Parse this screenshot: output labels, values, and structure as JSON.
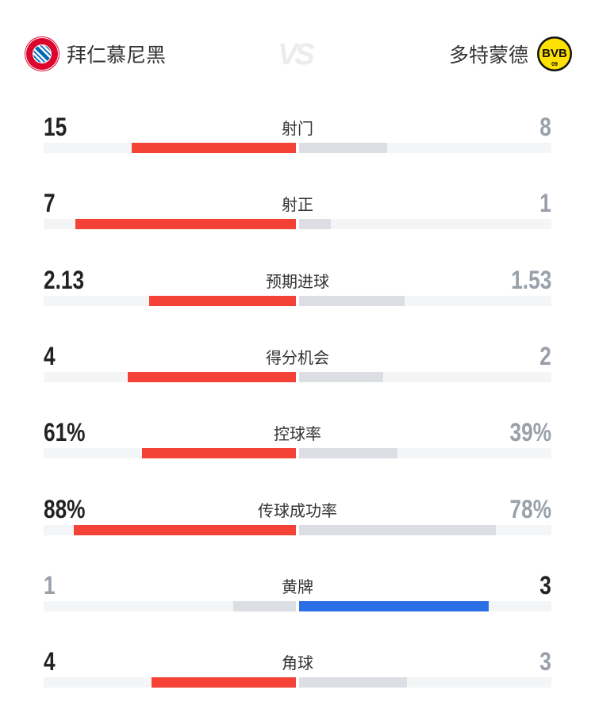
{
  "header": {
    "home_team": {
      "name": "拜仁慕尼黑",
      "logo_icon": "fc-bayern-crest",
      "logo_text": "FC BAYERN MÜNCHEN"
    },
    "away_team": {
      "name": "多特蒙德",
      "logo_icon": "bvb-crest",
      "logo_text": "BVB 09"
    },
    "vs": "VS"
  },
  "colors": {
    "home": "#f44336",
    "away": "#2b6fe6",
    "lose_bar": "#dcdee3",
    "track": "#f4f5f7"
  },
  "stats": [
    {
      "label": "射门",
      "home": "15",
      "away": "8"
    },
    {
      "label": "射正",
      "home": "7",
      "away": "1"
    },
    {
      "label": "预期进球",
      "home": "2.13",
      "away": "1.53"
    },
    {
      "label": "得分机会",
      "home": "4",
      "away": "2"
    },
    {
      "label": "控球率",
      "home": "61%",
      "away": "39%"
    },
    {
      "label": "传球成功率",
      "home": "88%",
      "away": "78%"
    },
    {
      "label": "黄牌",
      "home": "1",
      "away": "3"
    },
    {
      "label": "角球",
      "home": "4",
      "away": "3"
    }
  ]
}
